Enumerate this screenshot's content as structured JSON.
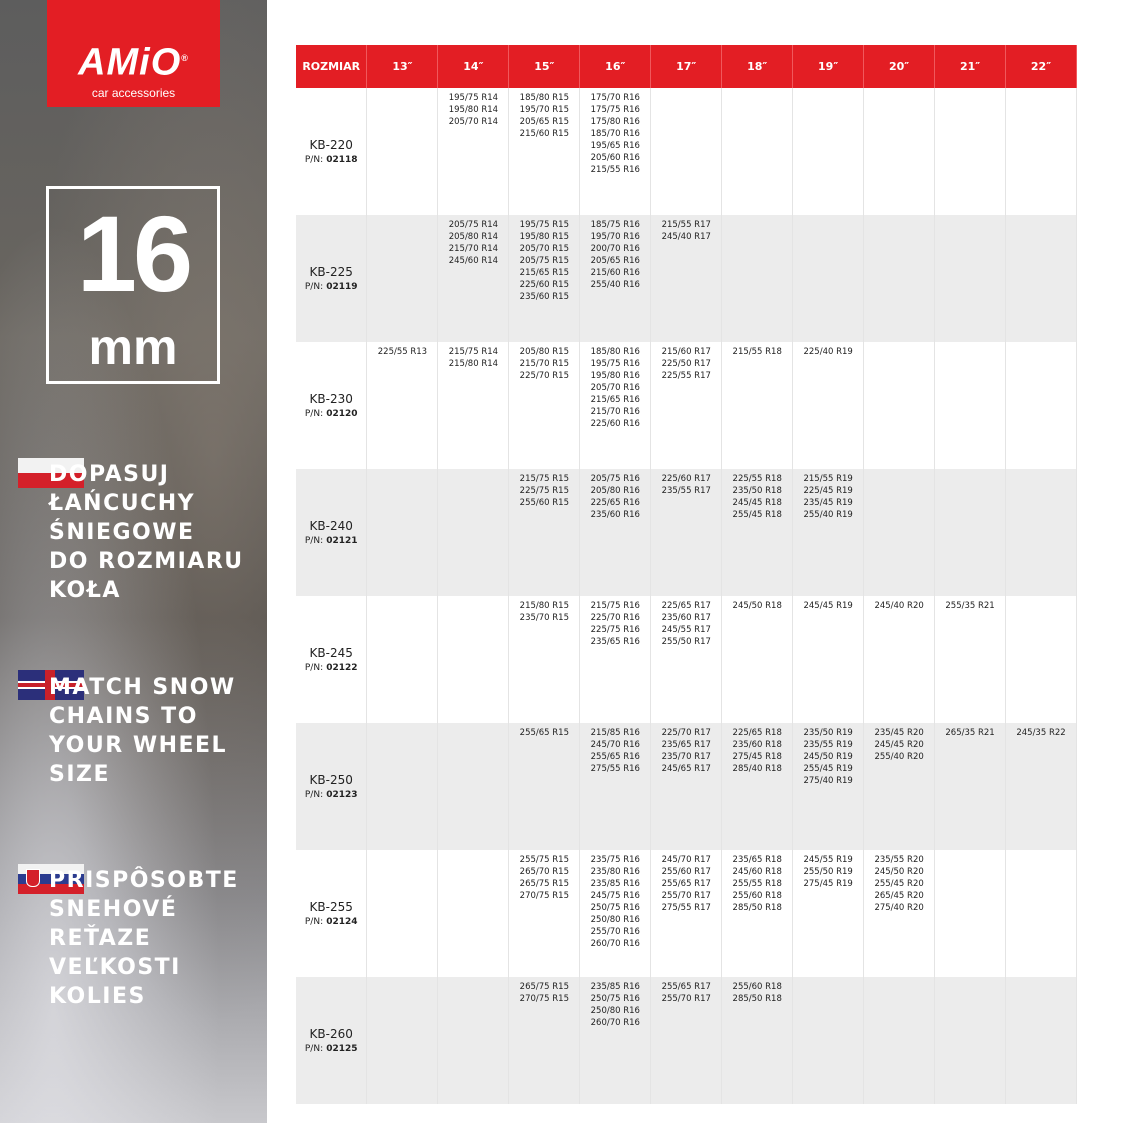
{
  "brand": {
    "logo_text": "AMiO",
    "tagline": "car accessories",
    "color": "#e31e24"
  },
  "size_badge": {
    "number": "16",
    "unit": "mm"
  },
  "slogans": [
    {
      "lang": "pl",
      "flag": "poland-flag-icon",
      "lines": [
        "DOPASUJ",
        "ŁAŃCUCHY",
        "ŚNIEGOWE",
        "DO ROZMIARU",
        "KOŁA"
      ]
    },
    {
      "lang": "en",
      "flag": "uk-flag-icon",
      "lines": [
        "MATCH SNOW",
        "CHAINS TO",
        "YOUR WHEEL",
        "SIZE"
      ]
    },
    {
      "lang": "sk",
      "flag": "slovakia-flag-icon",
      "lines": [
        "PRISPÔSOBTE",
        "SNEHOVÉ",
        "REŤAZE",
        "VEĽKOSTI",
        "KOLIES"
      ]
    }
  ],
  "table": {
    "header": [
      "ROZMIAR",
      "13″",
      "14″",
      "15″",
      "16″",
      "17″",
      "18″",
      "19″",
      "20″",
      "21″",
      "22″"
    ],
    "pn_label": "P/N:",
    "rows": [
      {
        "model": "KB-220",
        "pn": "02118",
        "cells": [
          [],
          [
            "195/75 R14",
            "195/80 R14",
            "205/70 R14"
          ],
          [
            "185/80 R15",
            "195/70 R15",
            "205/65 R15",
            "215/60 R15"
          ],
          [
            "175/70 R16",
            "175/75 R16",
            "175/80 R16",
            "185/70 R16",
            "195/65 R16",
            "205/60 R16",
            "215/55 R16"
          ],
          [],
          [],
          [],
          [],
          [],
          []
        ]
      },
      {
        "model": "KB-225",
        "pn": "02119",
        "cells": [
          [],
          [
            "205/75 R14",
            "205/80 R14",
            "215/70 R14",
            "245/60 R14"
          ],
          [
            "195/75 R15",
            "195/80 R15",
            "205/70 R15",
            "205/75 R15",
            "215/65 R15",
            "225/60 R15",
            "235/60 R15"
          ],
          [
            "185/75 R16",
            "195/70 R16",
            "200/70 R16",
            "205/65 R16",
            "215/60 R16",
            "255/40 R16"
          ],
          [
            "215/55 R17",
            "245/40 R17"
          ],
          [],
          [],
          [],
          [],
          []
        ]
      },
      {
        "model": "KB-230",
        "pn": "02120",
        "cells": [
          [
            "225/55 R13"
          ],
          [
            "215/75 R14",
            "215/80 R14"
          ],
          [
            "205/80 R15",
            "215/70 R15",
            "225/70 R15"
          ],
          [
            "185/80 R16",
            "195/75 R16",
            "195/80 R16",
            "205/70 R16",
            "215/65 R16",
            "215/70 R16",
            "225/60 R16"
          ],
          [
            "215/60 R17",
            "225/50 R17",
            "225/55 R17"
          ],
          [
            "215/55 R18"
          ],
          [
            "225/40 R19"
          ],
          [],
          [],
          []
        ]
      },
      {
        "model": "KB-240",
        "pn": "02121",
        "cells": [
          [],
          [],
          [
            "215/75 R15",
            "225/75 R15",
            "255/60 R15"
          ],
          [
            "205/75 R16",
            "205/80 R16",
            "225/65 R16",
            "235/60 R16"
          ],
          [
            "225/60 R17",
            "235/55 R17"
          ],
          [
            "225/55 R18",
            "235/50 R18",
            "245/45 R18",
            "255/45 R18"
          ],
          [
            "215/55 R19",
            "225/45 R19",
            "235/45 R19",
            "255/40 R19"
          ],
          [],
          [],
          []
        ]
      },
      {
        "model": "KB-245",
        "pn": "02122",
        "cells": [
          [],
          [],
          [
            "215/80 R15",
            "235/70 R15"
          ],
          [
            "215/75 R16",
            "225/70 R16",
            "225/75 R16",
            "235/65 R16"
          ],
          [
            "225/65 R17",
            "235/60 R17",
            "245/55 R17",
            "255/50 R17"
          ],
          [
            "245/50 R18"
          ],
          [
            "245/45 R19"
          ],
          [
            "245/40 R20"
          ],
          [
            "255/35 R21"
          ],
          []
        ]
      },
      {
        "model": "KB-250",
        "pn": "02123",
        "cells": [
          [],
          [],
          [
            "255/65 R15"
          ],
          [
            "215/85 R16",
            "245/70 R16",
            "255/65 R16",
            "275/55 R16"
          ],
          [
            "225/70 R17",
            "235/65 R17",
            "235/70 R17",
            "245/65 R17"
          ],
          [
            "225/65 R18",
            "235/60 R18",
            "275/45 R18",
            "285/40 R18"
          ],
          [
            "235/50 R19",
            "235/55 R19",
            "245/50 R19",
            "255/45 R19",
            "275/40 R19"
          ],
          [
            "235/45 R20",
            "245/45 R20",
            "255/40 R20"
          ],
          [
            "265/35 R21"
          ],
          [
            "245/35 R22"
          ]
        ]
      },
      {
        "model": "KB-255",
        "pn": "02124",
        "cells": [
          [],
          [],
          [
            "255/75 R15",
            "265/70 R15",
            "265/75 R15",
            "270/75 R15"
          ],
          [
            "235/75 R16",
            "235/80 R16",
            "235/85 R16",
            "245/75 R16",
            "250/75 R16",
            "250/80 R16",
            "255/70 R16",
            "260/70 R16"
          ],
          [
            "245/70 R17",
            "255/60 R17",
            "255/65 R17",
            "255/70 R17",
            "275/55 R17"
          ],
          [
            "235/65 R18",
            "245/60 R18",
            "255/55 R18",
            "255/60 R18",
            "285/50 R18"
          ],
          [
            "245/55 R19",
            "255/50 R19",
            "275/45 R19"
          ],
          [
            "235/55 R20",
            "245/50 R20",
            "255/45 R20",
            "265/45 R20",
            "275/40 R20"
          ],
          [],
          []
        ]
      },
      {
        "model": "KB-260",
        "pn": "02125",
        "cells": [
          [],
          [],
          [
            "265/75 R15",
            "270/75 R15"
          ],
          [
            "235/85 R16",
            "250/75 R16",
            "250/80 R16",
            "260/70 R16"
          ],
          [
            "255/65 R17",
            "255/70 R17"
          ],
          [
            "255/60 R18",
            "285/50 R18"
          ],
          [],
          [],
          [],
          []
        ]
      }
    ]
  }
}
